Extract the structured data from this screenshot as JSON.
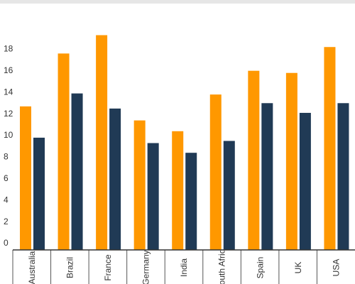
{
  "chart_data": {
    "type": "bar",
    "categories": [
      "Australia",
      "Brazil",
      "France",
      "Germany",
      "India",
      "South Africa",
      "Spain",
      "UK",
      "USA"
    ],
    "series": [
      {
        "color": "#ff9800",
        "values": [
          13.3,
          18.2,
          19.9,
          12.0,
          11.0,
          14.4,
          16.6,
          16.4,
          18.8
        ]
      },
      {
        "color": "#203a55",
        "values": [
          10.4,
          14.5,
          13.1,
          9.9,
          9.0,
          10.1,
          13.6,
          12.7,
          13.6
        ]
      }
    ],
    "ylim": [
      0,
      20
    ],
    "yticks": [
      0,
      2,
      4,
      6,
      8,
      10,
      12,
      14,
      16,
      18
    ]
  }
}
